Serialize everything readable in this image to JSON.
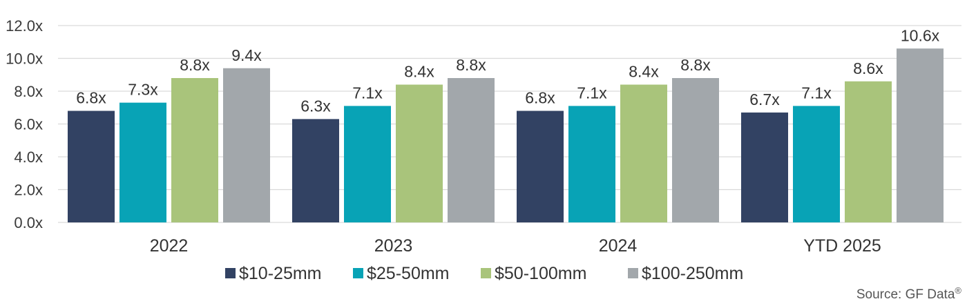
{
  "chart_data": {
    "type": "bar",
    "categories": [
      "2022",
      "2023",
      "2024",
      "YTD 2025"
    ],
    "series": [
      {
        "name": "$10-25mm",
        "color": "#324263",
        "values": [
          6.8,
          6.3,
          6.8,
          6.7
        ],
        "labels": [
          "6.8x",
          "6.3x",
          "6.8x",
          "6.7x"
        ]
      },
      {
        "name": "$25-50mm",
        "color": "#08a3b6",
        "values": [
          7.3,
          7.1,
          7.1,
          7.1
        ],
        "labels": [
          "7.3x",
          "7.1x",
          "7.1x",
          "7.1x"
        ]
      },
      {
        "name": "$50-100mm",
        "color": "#a9c47b",
        "values": [
          8.8,
          8.4,
          8.4,
          8.6
        ],
        "labels": [
          "8.8x",
          "8.4x",
          "8.4x",
          "8.6x"
        ]
      },
      {
        "name": "$100-250mm",
        "color": "#a2a7ab",
        "values": [
          9.4,
          8.8,
          8.8,
          10.6
        ],
        "labels": [
          "9.4x",
          "8.8x",
          "8.8x",
          "10.6x"
        ]
      }
    ],
    "yticks": [
      "0.0x",
      "2.0x",
      "4.0x",
      "6.0x",
      "8.0x",
      "10.0x",
      "12.0x"
    ],
    "ylim": [
      0,
      12
    ],
    "grid": true,
    "legend_position": "bottom"
  },
  "source": {
    "text": "Source: GF Data",
    "superscript": "®"
  }
}
